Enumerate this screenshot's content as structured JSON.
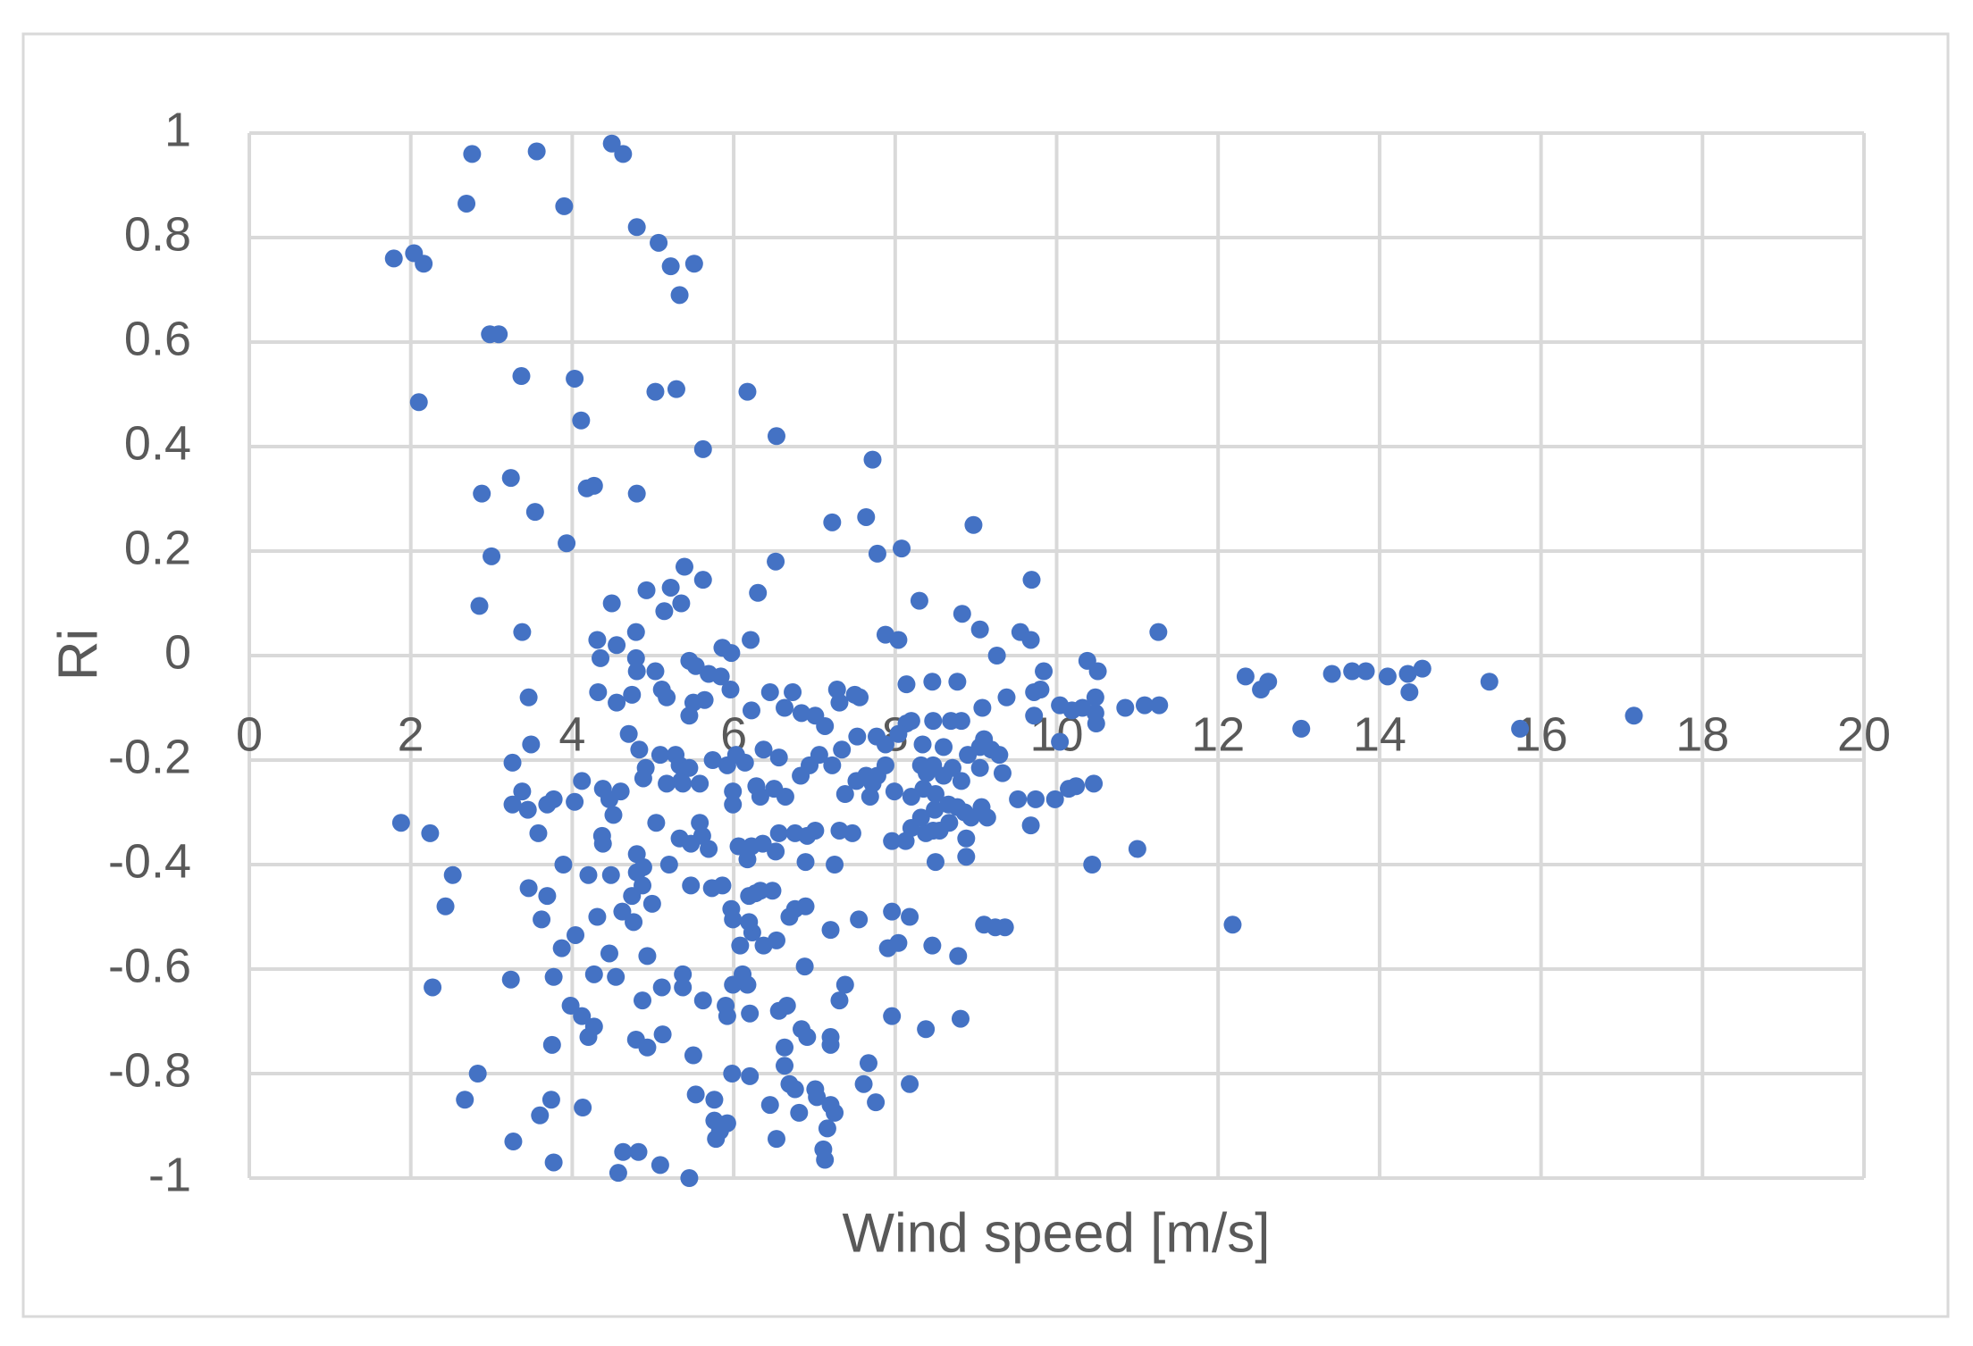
{
  "chart_data": {
    "type": "scatter",
    "x_label": "Wind speed [m/s]",
    "y_label": "Ri",
    "color": "#4472c4",
    "grid": true,
    "xlim": [
      0,
      20
    ],
    "xticks": [
      0,
      2,
      4,
      6,
      8,
      10,
      12,
      14,
      16,
      18,
      20
    ],
    "ylim": [
      -1,
      1
    ],
    "yticks": [
      -1,
      -0.8,
      -0.6,
      -0.4,
      -0.2,
      0,
      0.2,
      0.4,
      0.6,
      0.8,
      1
    ],
    "x": [
      1.79,
      2.04,
      2.16,
      2.1,
      1.88,
      2.24,
      2.52,
      2.43,
      2.27,
      2.69,
      2.76,
      3.56,
      3.9,
      4.49,
      4.63,
      4.8,
      5.07,
      5.22,
      5.51,
      5.33,
      2.98,
      3.09,
      3.37,
      4.03,
      4.11,
      5.03,
      5.29,
      6.17,
      5.62,
      6.53,
      2.88,
      3.24,
      3.54,
      4.18,
      4.27,
      4.8,
      3.0,
      3.93,
      7.72,
      7.22,
      7.64,
      7.78,
      8.08,
      8.97,
      6.52,
      5.39,
      5.62,
      6.3,
      4.49,
      4.92,
      5.22,
      5.35,
      5.14,
      2.85,
      3.38,
      4.31,
      4.55,
      4.79,
      4.79,
      4.8,
      4.35,
      4.32,
      4.55,
      4.74,
      3.46,
      4.7,
      5.03,
      5.11,
      5.17,
      5.45,
      5.53,
      5.69,
      5.84,
      5.86,
      5.97,
      6.21,
      5.96,
      6.22,
      6.45,
      6.63,
      6.73,
      6.84,
      7.01,
      7.28,
      7.31,
      7.5,
      7.56,
      5.5,
      5.64,
      5.45,
      7.88,
      8.04,
      8.83,
      8.3,
      9.05,
      9.69,
      9.55,
      9.68,
      9.26,
      9.84,
      10.38,
      10.51,
      11.26,
      9.72,
      9.8,
      10.04,
      10.19,
      10.32,
      10.48,
      10.48,
      10.49,
      10.04,
      9.72,
      10.85,
      11.09,
      11.27,
      12.34,
      12.53,
      12.62,
      13.03,
      13.41,
      13.66,
      13.83,
      14.1,
      14.35,
      14.37,
      14.53,
      15.36,
      15.74,
      17.15,
      3.26,
      3.49,
      3.38,
      3.26,
      3.45,
      3.58,
      3.69,
      3.77,
      4.03,
      4.12,
      4.38,
      4.46,
      4.6,
      4.51,
      4.37,
      4.38,
      3.46,
      3.62,
      3.69,
      3.89,
      4.2,
      4.48,
      4.31,
      4.62,
      4.04,
      3.87,
      4.46,
      3.77,
      3.24,
      4.27,
      4.54,
      3.98,
      4.12,
      4.2,
      4.27,
      3.75,
      2.83,
      2.67,
      3.74,
      3.6,
      4.13,
      3.27,
      3.77,
      4.57,
      4.63,
      4.82,
      5.09,
      5.45,
      4.76,
      4.74,
      4.8,
      4.8,
      4.87,
      4.99,
      4.88,
      4.83,
      4.91,
      4.88,
      5.04,
      5.09,
      5.17,
      5.28,
      5.33,
      5.35,
      5.37,
      5.45,
      5.58,
      5.33,
      5.47,
      5.58,
      5.61,
      5.69,
      5.2,
      5.47,
      5.73,
      5.86,
      4.93,
      4.87,
      5.11,
      5.37,
      5.37,
      5.62,
      4.79,
      4.93,
      5.12,
      5.5,
      5.53,
      5.76,
      5.76,
      5.83,
      5.78,
      5.92,
      5.74,
      5.92,
      6.03,
      6.14,
      5.99,
      5.99,
      6.06,
      6.22,
      5.97,
      5.99,
      6.19,
      6.23,
      6.08,
      6.33,
      6.48,
      6.37,
      6.53,
      6.11,
      5.99,
      6.17,
      5.9,
      5.92,
      6.2,
      5.98,
      6.2,
      6.45,
      6.53,
      6.56,
      6.66,
      6.63,
      6.63,
      6.69,
      6.81,
      6.76,
      6.84,
      6.91,
      6.88,
      7.01,
      7.03,
      7.13,
      7.11,
      7.16,
      7.2,
      7.25,
      7.31,
      7.38,
      7.2,
      7.2,
      7.2,
      6.76,
      6.89,
      6.69,
      6.89,
      6.56,
      6.76,
      6.91,
      7.01,
      7.25,
      7.31,
      7.47,
      7.38,
      7.52,
      7.64,
      7.72,
      7.69,
      7.78,
      7.88,
      7.99,
      7.77,
      7.55,
      7.67,
      7.61,
      7.76,
      7.96,
      7.96,
      7.91,
      8.04,
      8.18,
      8.18,
      8.38,
      8.46,
      8.5,
      7.96,
      8.13,
      8.2,
      8.38,
      8.47,
      8.55,
      8.67,
      8.78,
      8.81,
      8.88,
      8.88,
      8.94,
      9.07,
      9.14,
      9.1,
      9.24,
      9.36,
      9.52,
      9.68,
      9.74,
      9.98,
      10.15,
      10.24,
      10.46,
      10.44,
      11.0,
      12.18,
      8.14,
      8.2,
      8.34,
      8.47,
      8.6,
      8.69,
      8.82,
      8.9,
      9.05,
      9.1,
      9.19,
      9.05,
      9.29,
      9.33,
      9.08,
      9.38,
      8.77,
      8.46,
      8.14,
      8.32,
      8.39,
      8.47,
      8.6,
      8.71,
      8.82,
      8.35,
      8.2,
      8.5,
      8.66,
      8.77,
      8.86,
      8.49,
      8.32,
      8.04,
      7.88,
      7.22,
      7.06,
      6.94,
      6.83,
      7.13,
      7.34,
      7.53,
      6.37,
      6.56,
      6.33,
      6.5,
      6.64,
      6.28,
      6.36,
      6.52,
      6.17,
      6.19,
      6.27
    ],
    "values": [
      0.76,
      0.77,
      0.75,
      0.485,
      -0.32,
      -0.34,
      -0.42,
      -0.48,
      -0.635,
      0.865,
      0.96,
      0.965,
      0.86,
      0.98,
      0.96,
      0.82,
      0.79,
      0.745,
      0.75,
      0.69,
      0.615,
      0.615,
      0.535,
      0.53,
      0.45,
      0.505,
      0.51,
      0.505,
      0.395,
      0.42,
      0.31,
      0.34,
      0.275,
      0.32,
      0.325,
      0.31,
      0.19,
      0.215,
      0.375,
      0.255,
      0.265,
      0.195,
      0.205,
      0.25,
      0.18,
      0.17,
      0.145,
      0.12,
      0.1,
      0.125,
      0.13,
      0.1,
      0.085,
      0.095,
      0.045,
      0.03,
      0.02,
      0.045,
      -0.005,
      -0.03,
      -0.005,
      -0.07,
      -0.09,
      -0.075,
      -0.08,
      -0.15,
      -0.03,
      -0.065,
      -0.08,
      -0.01,
      -0.02,
      -0.035,
      -0.04,
      0.015,
      0.005,
      0.03,
      -0.065,
      -0.105,
      -0.07,
      -0.1,
      -0.07,
      -0.11,
      -0.115,
      -0.065,
      -0.09,
      -0.075,
      -0.08,
      -0.09,
      -0.085,
      -0.115,
      0.04,
      0.03,
      0.08,
      0.105,
      0.05,
      0.145,
      0.045,
      0.03,
      0.0,
      -0.03,
      -0.01,
      -0.03,
      0.045,
      -0.07,
      -0.065,
      -0.095,
      -0.105,
      -0.1,
      -0.08,
      -0.11,
      -0.13,
      -0.165,
      -0.115,
      -0.1,
      -0.095,
      -0.095,
      -0.04,
      -0.065,
      -0.05,
      -0.14,
      -0.035,
      -0.03,
      -0.03,
      -0.04,
      -0.035,
      -0.07,
      -0.025,
      -0.05,
      -0.14,
      -0.115,
      -0.205,
      -0.17,
      -0.26,
      -0.285,
      -0.295,
      -0.34,
      -0.285,
      -0.275,
      -0.28,
      -0.24,
      -0.255,
      -0.275,
      -0.26,
      -0.305,
      -0.345,
      -0.36,
      -0.445,
      -0.505,
      -0.46,
      -0.4,
      -0.42,
      -0.42,
      -0.5,
      -0.49,
      -0.535,
      -0.56,
      -0.57,
      -0.615,
      -0.62,
      -0.61,
      -0.615,
      -0.67,
      -0.69,
      -0.73,
      -0.71,
      -0.745,
      -0.8,
      -0.85,
      -0.85,
      -0.88,
      -0.865,
      -0.93,
      -0.97,
      -0.99,
      -0.95,
      -0.95,
      -0.975,
      -1.0,
      -0.51,
      -0.46,
      -0.415,
      -0.38,
      -0.44,
      -0.475,
      -0.405,
      -0.18,
      -0.215,
      -0.235,
      -0.32,
      -0.19,
      -0.245,
      -0.19,
      -0.21,
      -0.24,
      -0.245,
      -0.215,
      -0.245,
      -0.35,
      -0.36,
      -0.32,
      -0.345,
      -0.37,
      -0.4,
      -0.44,
      -0.445,
      -0.44,
      -0.575,
      -0.66,
      -0.635,
      -0.61,
      -0.635,
      -0.66,
      -0.735,
      -0.75,
      -0.725,
      -0.765,
      -0.84,
      -0.85,
      -0.89,
      -0.91,
      -0.925,
      -0.895,
      -0.2,
      -0.21,
      -0.19,
      -0.205,
      -0.26,
      -0.285,
      -0.365,
      -0.365,
      -0.485,
      -0.505,
      -0.46,
      -0.53,
      -0.555,
      -0.45,
      -0.45,
      -0.555,
      -0.545,
      -0.61,
      -0.63,
      -0.63,
      -0.67,
      -0.69,
      -0.685,
      -0.8,
      -0.805,
      -0.86,
      -0.925,
      -0.68,
      -0.67,
      -0.75,
      -0.785,
      -0.82,
      -0.875,
      -0.83,
      -0.715,
      -0.73,
      -0.595,
      -0.83,
      -0.845,
      -0.965,
      -0.945,
      -0.905,
      -0.86,
      -0.875,
      -0.66,
      -0.63,
      -0.73,
      -0.745,
      -0.525,
      -0.485,
      -0.48,
      -0.5,
      -0.395,
      -0.34,
      -0.34,
      -0.345,
      -0.335,
      -0.4,
      -0.335,
      -0.34,
      -0.265,
      -0.24,
      -0.23,
      -0.245,
      -0.27,
      -0.23,
      -0.21,
      -0.26,
      -0.155,
      -0.505,
      -0.78,
      -0.82,
      -0.855,
      -0.69,
      -0.49,
      -0.56,
      -0.55,
      -0.5,
      -0.82,
      -0.715,
      -0.555,
      -0.395,
      -0.355,
      -0.355,
      -0.33,
      -0.34,
      -0.335,
      -0.335,
      -0.32,
      -0.575,
      -0.695,
      -0.385,
      -0.35,
      -0.31,
      -0.29,
      -0.31,
      -0.515,
      -0.52,
      -0.52,
      -0.275,
      -0.325,
      -0.275,
      -0.275,
      -0.255,
      -0.25,
      -0.245,
      -0.4,
      -0.37,
      -0.515,
      -0.13,
      -0.125,
      -0.17,
      -0.125,
      -0.175,
      -0.125,
      -0.125,
      -0.19,
      -0.175,
      -0.16,
      -0.18,
      -0.215,
      -0.19,
      -0.225,
      -0.1,
      -0.08,
      -0.05,
      -0.05,
      -0.055,
      -0.21,
      -0.225,
      -0.21,
      -0.23,
      -0.215,
      -0.24,
      -0.255,
      -0.27,
      -0.265,
      -0.285,
      -0.29,
      -0.3,
      -0.295,
      -0.31,
      -0.15,
      -0.17,
      -0.21,
      -0.19,
      -0.21,
      -0.23,
      -0.135,
      -0.18,
      -0.155,
      -0.18,
      -0.195,
      -0.27,
      -0.255,
      -0.27,
      -0.25,
      -0.36,
      -0.375,
      -0.39,
      -0.51,
      -0.455
    ]
  }
}
